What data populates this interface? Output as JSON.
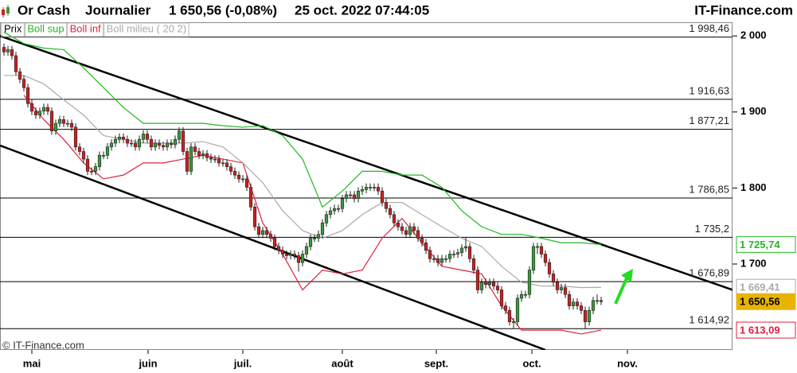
{
  "header": {
    "instrument": "Or Cash",
    "period": "Journalier",
    "quote": "1 650,56 (-0,08%)",
    "datetime": "25 oct. 2022 07:44:05",
    "site": "IT-Finance.com"
  },
  "chart_data": {
    "type": "candlestick",
    "candles": {
      "name": "Prix",
      "up_color": "#3a9a3a",
      "down_color": "#cc2020",
      "label_color": "#e8b400",
      "open": [
        1985,
        1979,
        1982,
        1974,
        1953,
        1943,
        1932,
        1911,
        1901,
        1896,
        1901,
        1906,
        1901,
        1875,
        1885,
        1890,
        1885,
        1885,
        1880,
        1854,
        1848,
        1838,
        1822,
        1822,
        1828,
        1843,
        1843,
        1854,
        1859,
        1864,
        1867,
        1864,
        1859,
        1859,
        1854,
        1864,
        1871,
        1864,
        1854,
        1859,
        1856,
        1854,
        1859,
        1857,
        1864,
        1875,
        1848,
        1822,
        1854,
        1848,
        1843,
        1845,
        1840,
        1838,
        1838,
        1833,
        1833,
        1828,
        1822,
        1817,
        1812,
        1812,
        1801,
        1775,
        1749,
        1739,
        1744,
        1739,
        1734,
        1723,
        1718,
        1713,
        1711,
        1713,
        1711,
        1702,
        1713,
        1723,
        1734,
        1734,
        1739,
        1754,
        1765,
        1770,
        1773,
        1773,
        1786,
        1791,
        1791,
        1786,
        1796,
        1798,
        1801,
        1801,
        1801,
        1796,
        1781,
        1773,
        1765,
        1754,
        1749,
        1744,
        1739,
        1749,
        1744,
        1734,
        1728,
        1718,
        1707,
        1707,
        1702,
        1707,
        1707,
        1713,
        1713,
        1715,
        1721,
        1723,
        1707,
        1692,
        1666,
        1676,
        1673,
        1676,
        1671,
        1666,
        1645,
        1639,
        1624,
        1624,
        1655,
        1660,
        1660,
        1692,
        1723,
        1723,
        1713,
        1702,
        1687,
        1676,
        1666,
        1669,
        1660,
        1645,
        1650,
        1645,
        1639,
        1624,
        1639,
        1652,
        1652
      ],
      "high": [
        1990,
        1987,
        1987,
        1979,
        1958,
        1948,
        1937,
        1916,
        1906,
        1906,
        1911,
        1911,
        1906,
        1890,
        1895,
        1895,
        1890,
        1890,
        1885,
        1859,
        1853,
        1843,
        1827,
        1833,
        1848,
        1848,
        1859,
        1864,
        1869,
        1872,
        1872,
        1869,
        1864,
        1864,
        1869,
        1876,
        1876,
        1869,
        1864,
        1864,
        1861,
        1864,
        1864,
        1869,
        1880,
        1880,
        1853,
        1859,
        1859,
        1853,
        1850,
        1850,
        1845,
        1843,
        1843,
        1838,
        1838,
        1833,
        1827,
        1822,
        1817,
        1817,
        1806,
        1780,
        1754,
        1749,
        1749,
        1744,
        1739,
        1728,
        1723,
        1718,
        1718,
        1718,
        1716,
        1718,
        1728,
        1739,
        1739,
        1744,
        1759,
        1770,
        1775,
        1778,
        1778,
        1791,
        1796,
        1796,
        1796,
        1801,
        1803,
        1806,
        1806,
        1806,
        1806,
        1801,
        1786,
        1778,
        1770,
        1759,
        1754,
        1749,
        1754,
        1754,
        1749,
        1739,
        1733,
        1723,
        1712,
        1712,
        1712,
        1712,
        1718,
        1718,
        1720,
        1726,
        1735,
        1728,
        1712,
        1697,
        1681,
        1681,
        1681,
        1681,
        1676,
        1671,
        1650,
        1644,
        1629,
        1660,
        1665,
        1665,
        1697,
        1728,
        1728,
        1728,
        1718,
        1707,
        1692,
        1681,
        1674,
        1674,
        1665,
        1655,
        1655,
        1650,
        1644,
        1644,
        1657,
        1660,
        1657
      ],
      "low": [
        1974,
        1974,
        1969,
        1948,
        1938,
        1927,
        1906,
        1896,
        1891,
        1891,
        1896,
        1896,
        1870,
        1870,
        1880,
        1880,
        1880,
        1875,
        1849,
        1843,
        1833,
        1817,
        1817,
        1817,
        1823,
        1838,
        1838,
        1849,
        1854,
        1859,
        1859,
        1854,
        1854,
        1849,
        1849,
        1859,
        1859,
        1849,
        1849,
        1851,
        1849,
        1849,
        1852,
        1852,
        1859,
        1843,
        1817,
        1817,
        1843,
        1838,
        1838,
        1835,
        1833,
        1833,
        1828,
        1828,
        1823,
        1817,
        1812,
        1807,
        1807,
        1796,
        1770,
        1744,
        1734,
        1734,
        1734,
        1729,
        1718,
        1713,
        1708,
        1706,
        1706,
        1706,
        1690,
        1697,
        1708,
        1718,
        1729,
        1729,
        1734,
        1749,
        1760,
        1765,
        1768,
        1768,
        1781,
        1786,
        1781,
        1781,
        1791,
        1793,
        1796,
        1796,
        1791,
        1776,
        1768,
        1760,
        1749,
        1744,
        1739,
        1734,
        1734,
        1739,
        1729,
        1723,
        1713,
        1702,
        1702,
        1697,
        1697,
        1702,
        1702,
        1708,
        1708,
        1710,
        1716,
        1702,
        1687,
        1661,
        1661,
        1668,
        1668,
        1666,
        1661,
        1640,
        1634,
        1619,
        1615,
        1619,
        1650,
        1655,
        1655,
        1687,
        1713,
        1708,
        1697,
        1682,
        1671,
        1661,
        1661,
        1655,
        1640,
        1640,
        1640,
        1634,
        1615,
        1619,
        1634,
        1647,
        1646
      ],
      "close": [
        1979,
        1982,
        1974,
        1953,
        1943,
        1932,
        1911,
        1901,
        1896,
        1901,
        1906,
        1901,
        1875,
        1885,
        1890,
        1885,
        1885,
        1880,
        1854,
        1848,
        1838,
        1822,
        1822,
        1828,
        1843,
        1843,
        1854,
        1859,
        1864,
        1867,
        1864,
        1859,
        1859,
        1854,
        1864,
        1871,
        1864,
        1854,
        1859,
        1856,
        1854,
        1859,
        1857,
        1864,
        1875,
        1848,
        1822,
        1854,
        1848,
        1843,
        1845,
        1840,
        1838,
        1838,
        1833,
        1833,
        1828,
        1822,
        1817,
        1812,
        1812,
        1801,
        1775,
        1749,
        1739,
        1744,
        1739,
        1734,
        1723,
        1718,
        1713,
        1711,
        1713,
        1711,
        1702,
        1713,
        1723,
        1734,
        1734,
        1739,
        1754,
        1765,
        1770,
        1773,
        1773,
        1786,
        1791,
        1791,
        1786,
        1796,
        1798,
        1801,
        1801,
        1801,
        1796,
        1781,
        1773,
        1765,
        1754,
        1749,
        1744,
        1739,
        1749,
        1744,
        1734,
        1728,
        1718,
        1707,
        1707,
        1702,
        1707,
        1707,
        1713,
        1713,
        1715,
        1721,
        1723,
        1707,
        1692,
        1666,
        1676,
        1673,
        1676,
        1671,
        1666,
        1645,
        1639,
        1624,
        1624,
        1655,
        1660,
        1660,
        1692,
        1723,
        1723,
        1713,
        1702,
        1687,
        1676,
        1666,
        1669,
        1660,
        1645,
        1650,
        1645,
        1639,
        1624,
        1639,
        1652,
        1652,
        1650.56
      ],
      "last_label": "1 650,56"
    },
    "series": [
      {
        "name": "Boll sup",
        "color": "#22b822",
        "last_label": "1 725,74",
        "x": [
          0,
          5,
          10,
          15,
          20,
          25,
          30,
          35,
          40,
          45,
          50,
          55,
          60,
          65,
          70,
          75,
          80,
          85,
          90,
          95,
          100,
          105,
          110,
          115,
          120,
          125,
          130,
          135,
          140,
          145,
          150
        ],
        "values": [
          2005,
          1990,
          1984,
          1982,
          1958,
          1932,
          1906,
          1885,
          1885,
          1885,
          1885,
          1882,
          1880,
          1882,
          1869,
          1838,
          1775,
          1796,
          1822,
          1822,
          1817,
          1817,
          1801,
          1770,
          1749,
          1739,
          1739,
          1734,
          1728,
          1728,
          1725.74
        ]
      },
      {
        "name": "Boll inf",
        "color": "#e0203a",
        "last_label": "1 613,09",
        "x": [
          0,
          5,
          10,
          15,
          20,
          25,
          30,
          35,
          40,
          45,
          50,
          55,
          60,
          65,
          70,
          75,
          80,
          85,
          90,
          95,
          100,
          105,
          110,
          115,
          120,
          125,
          130,
          135,
          140,
          145,
          150
        ],
        "values": [
          null,
          1922,
          1890,
          1864,
          1833,
          1812,
          1817,
          1833,
          1833,
          1838,
          1843,
          1838,
          1833,
          1754,
          1713,
          1666,
          1692,
          1687,
          1692,
          1734,
          1760,
          1728,
          1697,
          1692,
          1687,
          1645,
          1613,
          1613,
          1613,
          1608,
          1613.09
        ]
      },
      {
        "name": "Boll milieu ( 20 2)",
        "color": "#aaaaaa",
        "last_label": "1 669,41",
        "x": [
          0,
          5,
          10,
          15,
          20,
          25,
          30,
          35,
          40,
          45,
          50,
          55,
          60,
          65,
          70,
          75,
          80,
          85,
          90,
          95,
          100,
          105,
          110,
          115,
          120,
          125,
          130,
          135,
          140,
          145,
          150
        ],
        "values": [
          1948,
          1948,
          1937,
          1916,
          1896,
          1869,
          1864,
          1859,
          1859,
          1859,
          1861,
          1854,
          1833,
          1807,
          1770,
          1744,
          1734,
          1744,
          1765,
          1781,
          1781,
          1765,
          1749,
          1734,
          1723,
          1697,
          1676,
          1671,
          1671,
          1669,
          1669.41
        ]
      }
    ],
    "levels": [
      {
        "value": 1998.46,
        "label": "1 998,46"
      },
      {
        "value": 1916.63,
        "label": "1 916,63"
      },
      {
        "value": 1877.21,
        "label": "1 877,21"
      },
      {
        "value": 1786.85,
        "label": "1 786,85"
      },
      {
        "value": 1735.2,
        "label": "1 735,2"
      },
      {
        "value": 1676.89,
        "label": "1 676,89"
      },
      {
        "value": 1614.92,
        "label": "1 614,92"
      }
    ],
    "trendlines": [
      {
        "x": [
          -1,
          183
        ],
        "values": [
          2000,
          1666
        ]
      },
      {
        "x": [
          -1,
          136
        ],
        "values": [
          1856,
          1587
        ]
      }
    ],
    "xlim": [
      -1,
      183
    ],
    "xticks": [
      {
        "value": 7,
        "label": "mai"
      },
      {
        "value": 36.2,
        "label": "juin"
      },
      {
        "value": 60,
        "label": "juil."
      },
      {
        "value": 85,
        "label": "août"
      },
      {
        "value": 108.6,
        "label": "sept."
      },
      {
        "value": 132.6,
        "label": "oct."
      },
      {
        "value": 156.6,
        "label": "nov."
      }
    ],
    "ylim": [
      1587,
      2018
    ],
    "yticks": [
      {
        "value": 2000,
        "label": "2 000"
      },
      {
        "value": 1900,
        "label": "1 900"
      },
      {
        "value": 1800,
        "label": "1 800"
      },
      {
        "value": 1700,
        "label": "1 700"
      }
    ],
    "footer": "© IT-Finance.com"
  }
}
